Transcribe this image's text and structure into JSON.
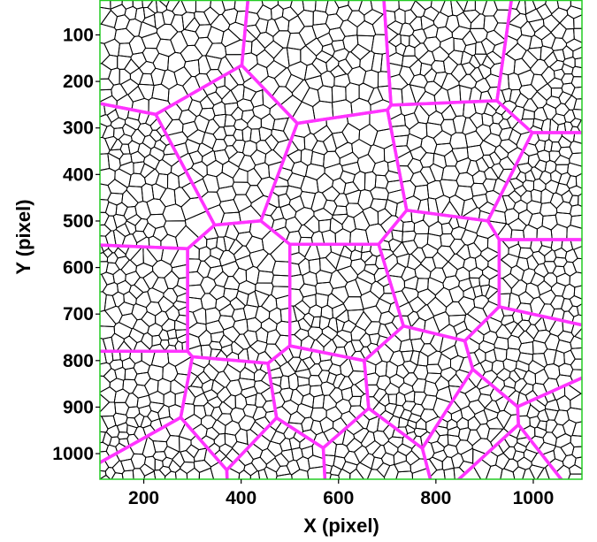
{
  "chart_data": {
    "type": "scatter",
    "title": "",
    "xlabel": "X (pixel)",
    "ylabel": "Y (pixel)",
    "xlim": [
      110,
      1100
    ],
    "ylim": [
      1055,
      25
    ],
    "x_ticks": [
      "200",
      "400",
      "600",
      "800",
      "1000"
    ],
    "y_ticks": [
      "100",
      "200",
      "300",
      "400",
      "500",
      "600",
      "700",
      "800",
      "900",
      "1000"
    ],
    "grid": false,
    "colors": {
      "frame": "#22cc22",
      "coarse_cells": "#ff33ff",
      "fine_mesh": "#000000"
    },
    "coarse_cell_seeds": [
      [
        250,
        110
      ],
      [
        560,
        140
      ],
      [
        840,
        120
      ],
      [
        1040,
        150
      ],
      [
        190,
        430
      ],
      [
        370,
        330
      ],
      [
        600,
        420
      ],
      [
        850,
        370
      ],
      [
        1040,
        470
      ],
      [
        180,
        680
      ],
      [
        400,
        680
      ],
      [
        600,
        680
      ],
      [
        820,
        610
      ],
      [
        1040,
        610
      ],
      [
        180,
        880
      ],
      [
        380,
        920
      ],
      [
        560,
        890
      ],
      [
        760,
        870
      ],
      [
        880,
        950
      ],
      [
        1000,
        800
      ],
      [
        1060,
        940
      ],
      [
        480,
        1020
      ],
      [
        260,
        1030
      ],
      [
        660,
        1010
      ],
      [
        950,
        1030
      ]
    ]
  }
}
